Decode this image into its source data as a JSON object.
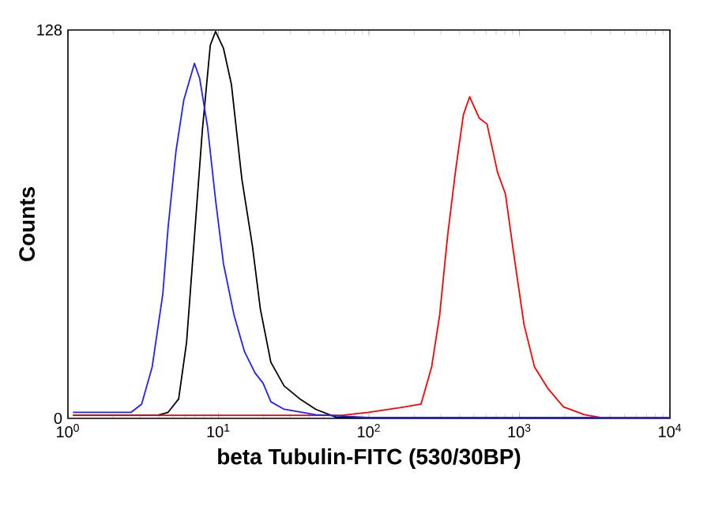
{
  "chart_data": {
    "type": "line",
    "xlabel": "beta Tubulin-FITC (530/30BP)",
    "ylabel": "Counts",
    "log": "x",
    "grid": false,
    "marker": "none",
    "line_style": "solid",
    "xlim": [
      1,
      10000
    ],
    "ylim": [
      0,
      128
    ],
    "xticks": [
      {
        "value": 1,
        "label": "10$^{0}$"
      },
      {
        "value": 10,
        "label": "10$^{1}$"
      },
      {
        "value": 100,
        "label": "10$^{2}$"
      },
      {
        "value": 1000,
        "label": "10$^{3}$"
      },
      {
        "value": 10000,
        "label": "10$^{4}$"
      }
    ],
    "yticks": [
      0,
      128
    ],
    "series": [
      {
        "color": "#000000",
        "x": [
          1.08,
          3.94,
          4.63,
          5.44,
          6.14,
          6.93,
          7.82,
          8.83,
          9.57,
          10.8,
          12.2,
          14.3,
          16.8,
          19.0,
          22.3,
          27.3,
          34.8,
          44.3,
          61.1,
          10000
        ],
        "values": [
          1,
          1,
          2,
          6.4,
          25,
          60,
          95,
          123,
          127.5,
          122,
          110,
          79,
          57,
          36,
          18.5,
          10.7,
          6.4,
          3,
          0.3,
          0.3
        ]
      },
      {
        "color": "#ff0000",
        "x": [
          1.08,
          66.3,
          99.2,
          174,
          222,
          261,
          295,
          333,
          375,
          424,
          467,
          540,
          609,
          716,
          807,
          912,
          1072,
          1259,
          1539,
          1959,
          2710,
          3451,
          10000
        ],
        "values": [
          1,
          1,
          2,
          3.8,
          4.7,
          17,
          34,
          60,
          81,
          100,
          106,
          99,
          97,
          81,
          74,
          55,
          31,
          17,
          10,
          3.8,
          1.2,
          0.3,
          0
        ]
      },
      {
        "color": "#2020ff",
        "x": [
          1.08,
          2.63,
          3.09,
          3.63,
          4.27,
          4.63,
          5.22,
          5.89,
          6.93,
          7.51,
          8.47,
          9.57,
          10.8,
          12.7,
          14.9,
          17.5,
          19.8,
          22.3,
          27.3,
          44.3,
          99.2,
          10000
        ],
        "values": [
          2,
          2,
          4.7,
          17,
          41,
          63,
          88,
          105,
          117,
          112,
          96,
          72,
          51,
          34,
          22,
          15,
          11.6,
          5.5,
          3,
          1.2,
          0.3,
          0.3
        ]
      }
    ]
  }
}
